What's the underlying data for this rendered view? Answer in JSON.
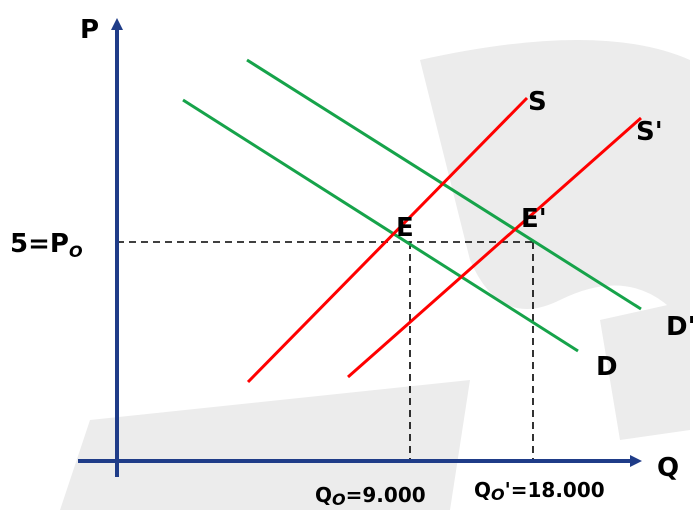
{
  "axes": {
    "y_label": "P",
    "x_label": "Q",
    "price_label": "5=P",
    "price_sub": "O"
  },
  "curves": {
    "supply": "S",
    "supply_shifted": "S'",
    "demand": "D",
    "demand_shifted": "D'"
  },
  "equilibria": {
    "initial": "E",
    "new": "E'"
  },
  "quantities": {
    "initial_prefix": "Q",
    "initial_sub": "O",
    "initial_value": "=9.000",
    "new_prefix": "Q",
    "new_sub": "O",
    "new_value": "'=18.000"
  },
  "colors": {
    "axis": "#1f3c88",
    "supply": "#ff0000",
    "demand": "#16a34a",
    "watermark": "#e6e6e6",
    "guide": "#000000"
  }
}
